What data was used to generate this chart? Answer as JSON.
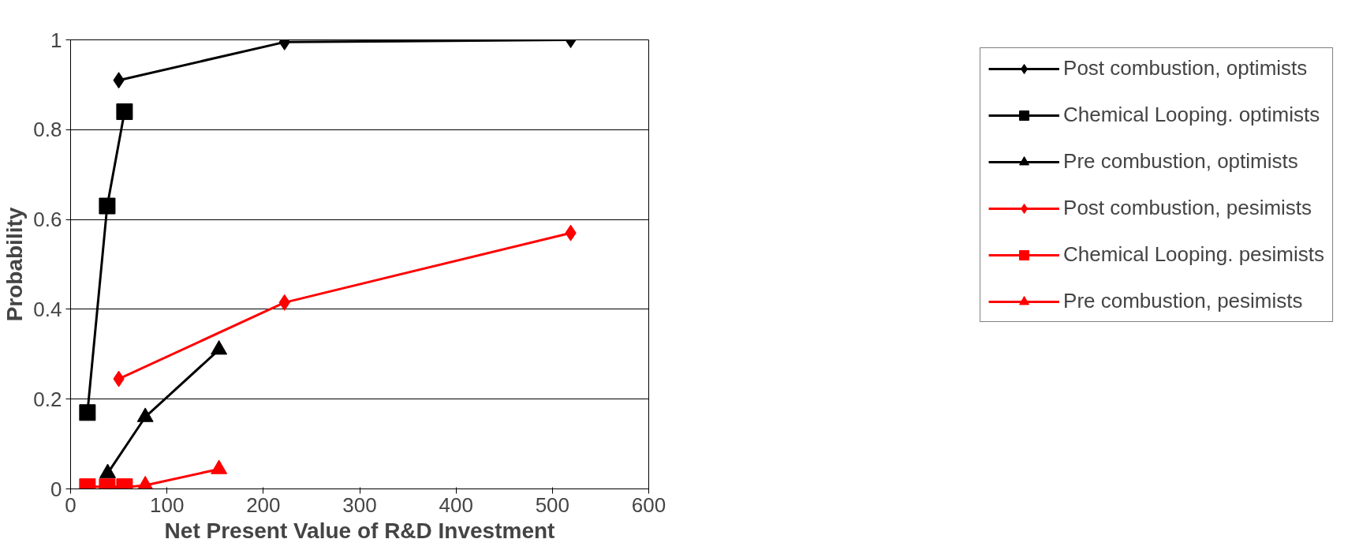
{
  "chart_data": {
    "type": "line",
    "xlabel": "Net Present Value of R&D Investment",
    "ylabel": "Probability",
    "xlim": [
      0,
      600
    ],
    "xticks": [
      0,
      100,
      200,
      300,
      400,
      500,
      600
    ],
    "ylim": [
      0,
      1
    ],
    "yticks": [
      0,
      0.2,
      0.4,
      0.6,
      0.8,
      1
    ],
    "grid": "y",
    "legend": "right",
    "line_style": "solid",
    "series": [
      {
        "name": "Post combustion, optimists",
        "color": "#000000",
        "marker": "diamond",
        "x": [
          50,
          222,
          519
        ],
        "values": [
          0.91,
          0.995,
          1.0
        ]
      },
      {
        "name": "Chemical Looping. optimists",
        "color": "#000000",
        "marker": "square",
        "x": [
          17.5,
          38,
          56
        ],
        "values": [
          0.17,
          0.63,
          0.84
        ]
      },
      {
        "name": "Pre combustion, optimists",
        "color": "#000000",
        "marker": "triangle",
        "x": [
          38.5,
          77.5,
          154
        ],
        "values": [
          0.035,
          0.16,
          0.31
        ]
      },
      {
        "name": "Post combustion, pesimists",
        "color": "#ff0000",
        "marker": "diamond",
        "x": [
          50,
          222,
          519
        ],
        "values": [
          0.245,
          0.415,
          0.57
        ]
      },
      {
        "name": "Chemical Looping. pesimists",
        "color": "#ff0000",
        "marker": "square",
        "x": [
          17.5,
          38,
          56
        ],
        "values": [
          0.005,
          0.005,
          0.005
        ]
      },
      {
        "name": "Pre combustion, pesimists",
        "color": "#ff0000",
        "marker": "triangle",
        "x": [
          38.5,
          77.5,
          154
        ],
        "values": [
          0.0,
          0.008,
          0.044
        ]
      }
    ]
  }
}
